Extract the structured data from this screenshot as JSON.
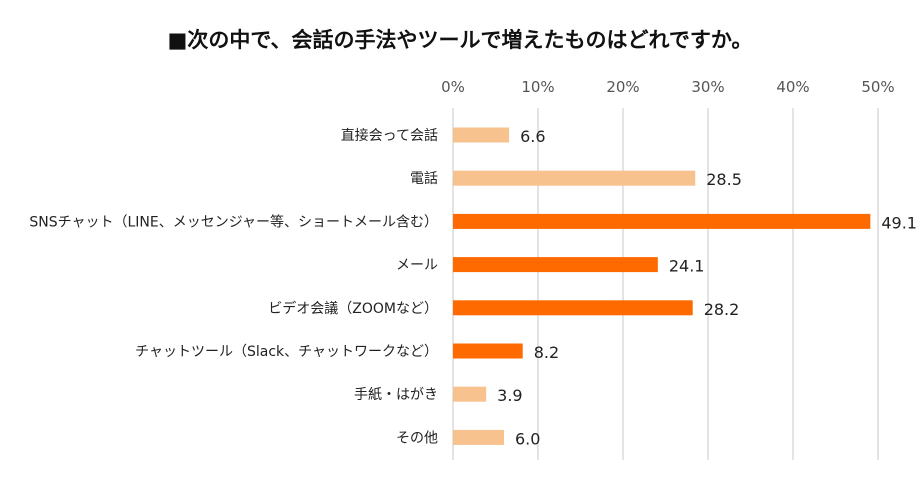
{
  "chart_data": {
    "type": "bar",
    "orientation": "horizontal",
    "title": "■次の中で、会話の手法やツールで増えたものはどれですか。",
    "categories": [
      "直接会って会話",
      "電話",
      "SNSチャット（LINE、メッセンジャー等、ショートメール含む）",
      "メール",
      "ビデオ会議（ZOOMなど）",
      "チャットツール（Slack、チャットワークなど）",
      "手紙・はがき",
      "その他"
    ],
    "values": [
      6.6,
      28.5,
      49.1,
      24.1,
      28.2,
      8.2,
      3.9,
      6.0
    ],
    "value_labels": [
      "6.6",
      "28.5",
      "49.1",
      "24.1",
      "28.2",
      "8.2",
      "3.9",
      "6.0"
    ],
    "bar_colors": [
      "#F8C28F",
      "#F8C28F",
      "#FF6A00",
      "#FF6A00",
      "#FF6A00",
      "#FF6A00",
      "#F8C28F",
      "#F8C28F"
    ],
    "xlim": [
      0,
      50
    ],
    "x_ticks": [
      "0%",
      "10%",
      "20%",
      "30%",
      "40%",
      "50%"
    ],
    "x_tick_values": [
      0,
      10,
      20,
      30,
      40,
      50
    ],
    "axis_position": "top",
    "grid": true,
    "grid_color": "#D0D0D0",
    "legend": "none"
  }
}
